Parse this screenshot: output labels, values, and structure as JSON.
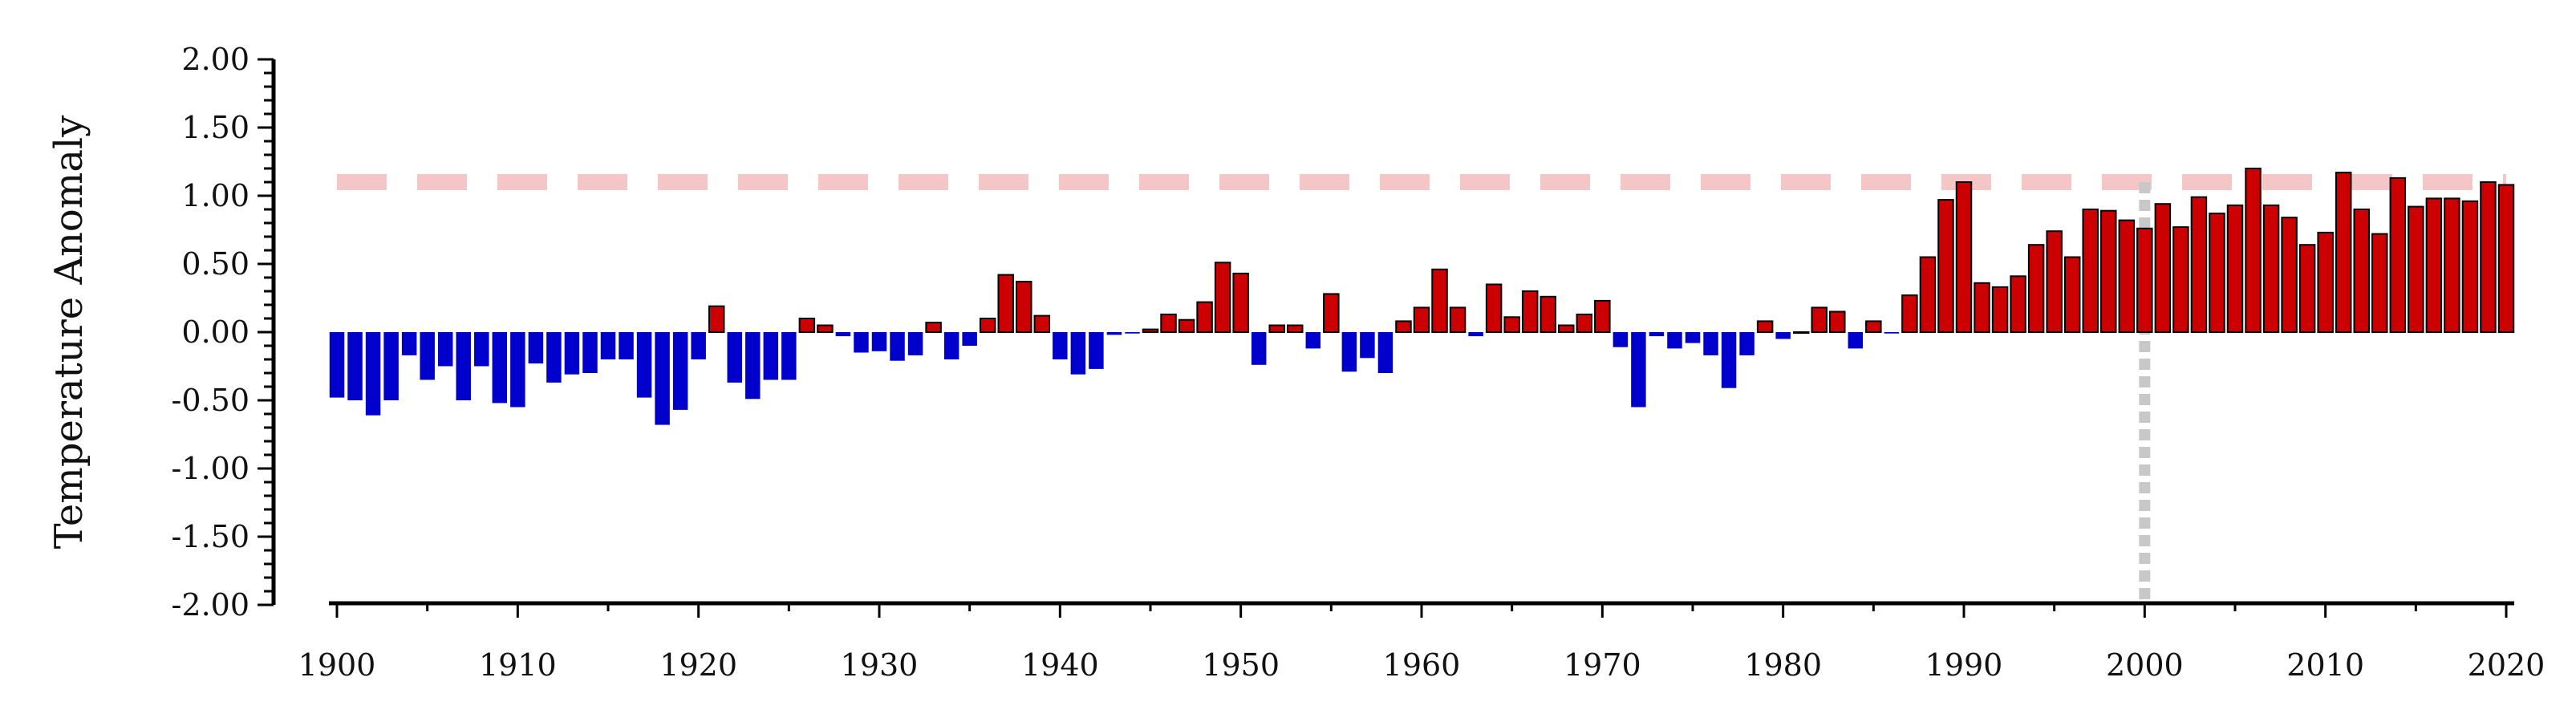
{
  "chart_data": {
    "type": "bar",
    "title": "",
    "xlabel": "",
    "ylabel": "Temperature Anomaly",
    "xlim": [
      1899.5,
      2020.5
    ],
    "ylim": [
      -2.0,
      2.0
    ],
    "yticks": [
      "2.00",
      "1.50",
      "1.00",
      "0.50",
      "0.00",
      "-0.50",
      "-1.00",
      "-1.50",
      "-2.00"
    ],
    "ytick_values": [
      2.0,
      1.5,
      1.0,
      0.5,
      0.0,
      -0.5,
      -1.0,
      -1.5,
      -2.0
    ],
    "xticks": [
      "1900",
      "1910",
      "1920",
      "1930",
      "1940",
      "1950",
      "1960",
      "1970",
      "1980",
      "1990",
      "2000",
      "2010",
      "2020"
    ],
    "xtick_values": [
      1900,
      1910,
      1920,
      1930,
      1940,
      1950,
      1960,
      1970,
      1980,
      1990,
      2000,
      2010,
      2020
    ],
    "grid": false,
    "colors": {
      "positive": "#cc0000",
      "negative": "#0000cc",
      "threshold_line": "#f4c6c6",
      "marker_line": "#c8c8c8"
    },
    "threshold": {
      "y": 1.1,
      "style": "dashed"
    },
    "marker_year": {
      "x": 2000,
      "style": "dotted"
    },
    "x": [
      1900,
      1901,
      1902,
      1903,
      1904,
      1905,
      1906,
      1907,
      1908,
      1909,
      1910,
      1911,
      1912,
      1913,
      1914,
      1915,
      1916,
      1917,
      1918,
      1919,
      1920,
      1921,
      1922,
      1923,
      1924,
      1925,
      1926,
      1927,
      1928,
      1929,
      1930,
      1931,
      1932,
      1933,
      1934,
      1935,
      1936,
      1937,
      1938,
      1939,
      1940,
      1941,
      1942,
      1943,
      1944,
      1945,
      1946,
      1947,
      1948,
      1949,
      1950,
      1951,
      1952,
      1953,
      1954,
      1955,
      1956,
      1957,
      1958,
      1959,
      1960,
      1961,
      1962,
      1963,
      1964,
      1965,
      1966,
      1967,
      1968,
      1969,
      1970,
      1971,
      1972,
      1973,
      1974,
      1975,
      1976,
      1977,
      1978,
      1979,
      1980,
      1981,
      1982,
      1983,
      1984,
      1985,
      1986,
      1987,
      1988,
      1989,
      1990,
      1991,
      1992,
      1993,
      1994,
      1995,
      1996,
      1997,
      1998,
      1999,
      2000,
      2001,
      2002,
      2003,
      2004,
      2005,
      2006,
      2007,
      2008,
      2009,
      2010,
      2011,
      2012,
      2013,
      2014,
      2015,
      2016,
      2017,
      2018,
      2019,
      2020
    ],
    "values": [
      -0.48,
      -0.5,
      -0.61,
      -0.5,
      -0.17,
      -0.35,
      -0.25,
      -0.5,
      -0.25,
      -0.52,
      -0.55,
      -0.23,
      -0.37,
      -0.31,
      -0.3,
      -0.2,
      -0.2,
      -0.48,
      -0.68,
      -0.57,
      -0.2,
      0.19,
      -0.37,
      -0.49,
      -0.35,
      -0.35,
      0.1,
      0.05,
      -0.03,
      -0.15,
      -0.14,
      -0.21,
      -0.17,
      0.07,
      -0.2,
      -0.1,
      0.1,
      0.42,
      0.37,
      0.12,
      -0.2,
      -0.31,
      -0.27,
      -0.02,
      -0.01,
      0.02,
      0.13,
      0.09,
      0.22,
      0.51,
      0.43,
      -0.24,
      0.05,
      0.05,
      -0.12,
      0.28,
      -0.29,
      -0.19,
      -0.3,
      0.08,
      0.18,
      0.46,
      0.18,
      -0.03,
      0.35,
      0.11,
      0.3,
      0.26,
      0.05,
      0.13,
      0.23,
      -0.11,
      -0.55,
      -0.03,
      -0.12,
      -0.08,
      -0.17,
      -0.41,
      -0.17,
      0.08,
      -0.05,
      0.0,
      0.18,
      0.15,
      -0.12,
      0.08,
      -0.01,
      0.27,
      0.55,
      0.97,
      1.1,
      0.36,
      0.33,
      0.41,
      0.64,
      0.74,
      0.55,
      0.9,
      0.89,
      0.82,
      0.76,
      0.94,
      0.77,
      0.99,
      0.87,
      0.93,
      1.2,
      0.93,
      0.84,
      0.64,
      0.73,
      1.17,
      0.9,
      0.72,
      1.13,
      0.92,
      0.98,
      0.98,
      0.96,
      1.1,
      1.08
    ]
  }
}
